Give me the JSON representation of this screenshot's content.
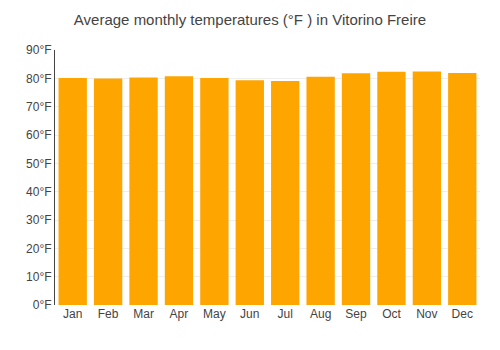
{
  "chart_data": {
    "type": "bar",
    "title": "Average monthly temperatures (°F ) in Vitorino Freire",
    "categories": [
      "Jan",
      "Feb",
      "Mar",
      "Apr",
      "May",
      "Jun",
      "Jul",
      "Aug",
      "Sep",
      "Oct",
      "Nov",
      "Dec"
    ],
    "values": [
      80.1,
      79.9,
      80.3,
      80.7,
      80.1,
      79.3,
      79.1,
      80.6,
      81.8,
      82.3,
      82.4,
      81.9
    ],
    "color": "#FFA500",
    "ylim": [
      0,
      90
    ],
    "yticks": [
      {
        "value": 0,
        "label": "0°F"
      },
      {
        "value": 10,
        "label": "10°F"
      },
      {
        "value": 20,
        "label": "20°F"
      },
      {
        "value": 30,
        "label": "30°F"
      },
      {
        "value": 40,
        "label": "40°F"
      },
      {
        "value": 50,
        "label": "50°F"
      },
      {
        "value": 60,
        "label": "60°F"
      },
      {
        "value": 70,
        "label": "70°F"
      },
      {
        "value": 80,
        "label": "80°F"
      },
      {
        "value": 90,
        "label": "90°F"
      }
    ],
    "grid": true
  }
}
